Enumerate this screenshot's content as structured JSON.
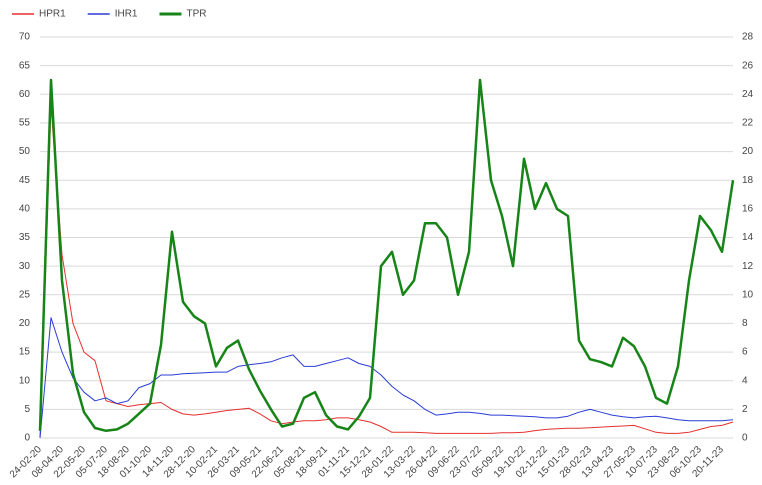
{
  "chart_data": {
    "type": "line",
    "categories": [
      "24-02-20",
      null,
      "08-04-20",
      null,
      "22-05-20",
      null,
      "05-07-20",
      null,
      "18-08-20",
      null,
      "01-10-20",
      null,
      "14-11-20",
      null,
      "28-12-20",
      null,
      "10-02-21",
      null,
      "26-03-21",
      null,
      "09-05-21",
      null,
      "22-06-21",
      null,
      "05-08-21",
      null,
      "18-09-21",
      null,
      "01-11-21",
      null,
      "15-12-21",
      null,
      "28-01-22",
      null,
      "13-03-22",
      null,
      "26-04-22",
      null,
      "09-06-22",
      null,
      "23-07-22",
      null,
      "05-09-22",
      null,
      "19-10-22",
      null,
      "02-12-22",
      null,
      "15-01-23",
      null,
      "28-02-23",
      null,
      "13-04-23",
      null,
      "27-05-23",
      null,
      "10-07-23",
      null,
      "23-08-23",
      null,
      "06-10-23",
      null,
      "20-11-23",
      null
    ],
    "series": [
      {
        "name": "HPR1",
        "color": "#e5302d",
        "line_width": 1,
        "values": [
          0,
          58,
          32,
          20,
          15,
          13.5,
          6.5,
          6,
          5.5,
          5.8,
          6,
          6.2,
          5,
          4.2,
          4,
          4.2,
          4.5,
          4.8,
          5,
          5.2,
          4.2,
          3,
          2.5,
          2.8,
          3,
          3,
          3.2,
          3.5,
          3.5,
          3.2,
          2.8,
          2,
          1,
          1,
          1,
          0.9,
          0.8,
          0.8,
          0.8,
          0.8,
          0.8,
          0.8,
          0.9,
          0.9,
          1,
          1.3,
          1.5,
          1.6,
          1.7,
          1.7,
          1.8,
          1.9,
          2,
          2.1,
          2.2,
          1.6,
          1,
          0.8,
          0.8,
          1,
          1.5,
          2,
          2.2,
          2.8
        ]
      },
      {
        "name": "IHR1",
        "color": "#2a3cd6",
        "line_width": 1,
        "values": [
          0,
          21,
          15,
          10.5,
          8,
          6.5,
          7,
          6,
          6.5,
          8.8,
          9.5,
          11,
          11,
          11.2,
          11.3,
          11.4,
          11.5,
          11.5,
          12.5,
          12.8,
          13,
          13.3,
          14,
          14.5,
          12.5,
          12.5,
          13,
          13.5,
          14,
          13,
          12.5,
          11,
          9,
          7.5,
          6.5,
          5,
          4,
          4.2,
          4.5,
          4.5,
          4.3,
          4,
          4,
          3.9,
          3.8,
          3.7,
          3.5,
          3.5,
          3.8,
          4.5,
          5,
          4.5,
          4,
          3.7,
          3.5,
          3.7,
          3.8,
          3.5,
          3.2,
          3,
          3,
          3,
          3,
          3.2
        ]
      },
      {
        "name": "TPR",
        "color": "#178417",
        "line_width": 2.5,
        "axis": "y2",
        "values": [
          0.5,
          25,
          11,
          4.5,
          1.8,
          0.7,
          0.5,
          0.6,
          1,
          1.7,
          2.4,
          6.5,
          14.4,
          9.5,
          8.5,
          8,
          5,
          6.3,
          6.8,
          4.8,
          3.3,
          2,
          0.8,
          1,
          2.8,
          3.2,
          1.6,
          0.8,
          0.6,
          1.5,
          2.8,
          12,
          13,
          10,
          11,
          15,
          15,
          14,
          10,
          13,
          25,
          18,
          15.5,
          12,
          19.5,
          16,
          17.8,
          16,
          15.5,
          6.8,
          5.5,
          5.3,
          5,
          7,
          6.4,
          5,
          2.8,
          2.4,
          5,
          11,
          15.5,
          14.5,
          13,
          18
        ]
      }
    ],
    "ylim": [
      0,
      70
    ],
    "yticks": [
      0,
      5,
      10,
      15,
      20,
      25,
      30,
      35,
      40,
      45,
      50,
      55,
      60,
      65,
      70
    ],
    "y2lim": [
      0,
      28
    ],
    "y2ticks": [
      0,
      2,
      4,
      6,
      8,
      10,
      12,
      14,
      16,
      18,
      20,
      22,
      24,
      26,
      28
    ],
    "grid": true,
    "legend": "top-left"
  }
}
